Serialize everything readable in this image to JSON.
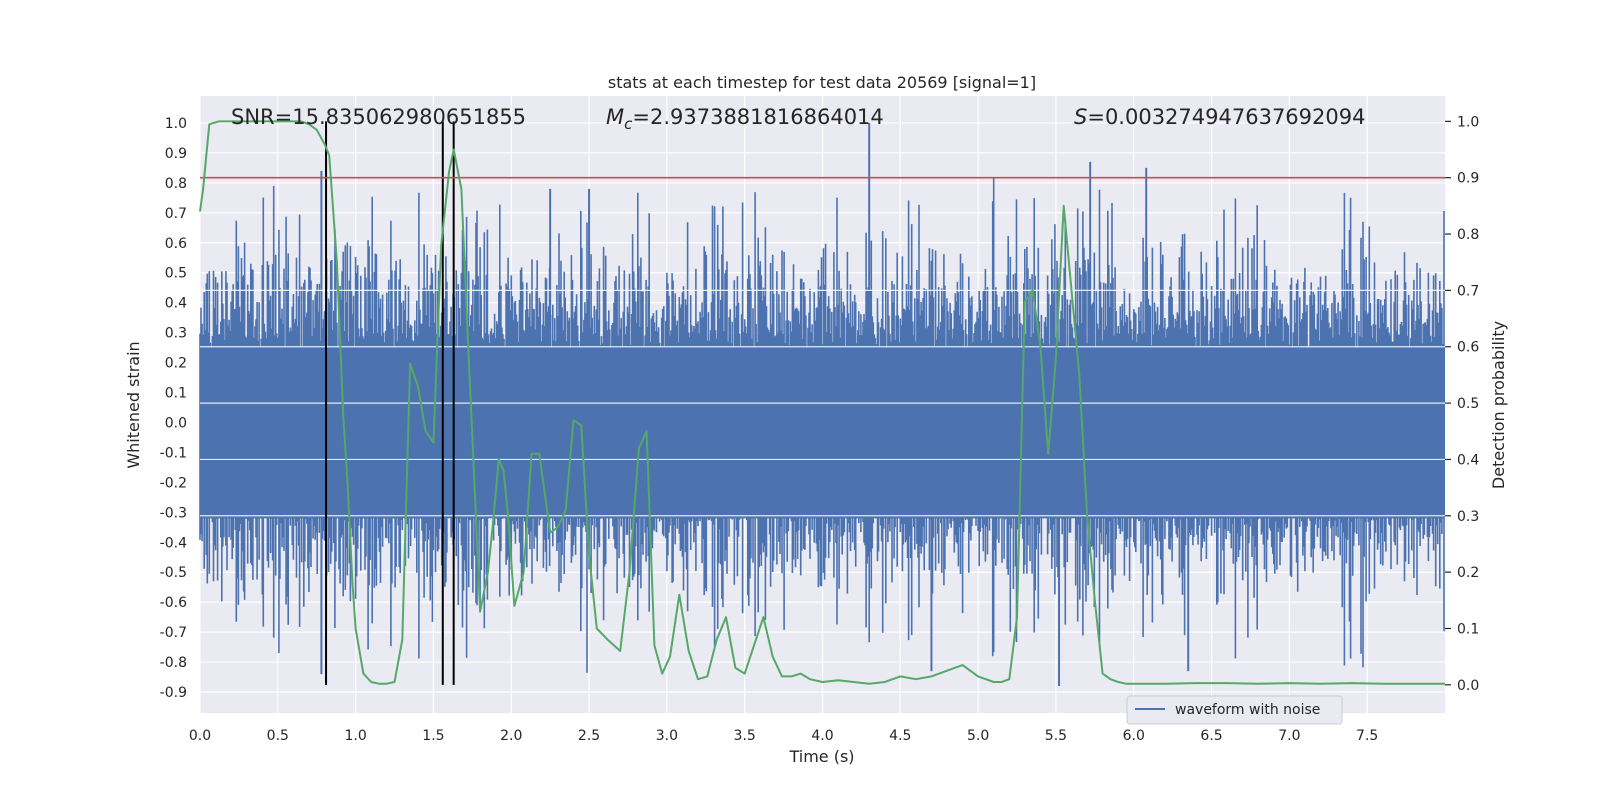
{
  "chart_data": {
    "type": "line",
    "title": "stats at each timestep for test data 20569 [signal=1]",
    "xlabel": "Time (s)",
    "ylabel_left": "Whitened strain",
    "ylabel_right": "Detection probability",
    "xlim": [
      0.0,
      8.0
    ],
    "ylim_left": [
      -0.97,
      1.09
    ],
    "ylim_right": [
      -0.05,
      1.045
    ],
    "x_ticks": [
      "0.0",
      "0.5",
      "1.0",
      "1.5",
      "2.0",
      "2.5",
      "3.0",
      "3.5",
      "4.0",
      "4.5",
      "5.0",
      "5.5",
      "6.0",
      "6.5",
      "7.0",
      "7.5"
    ],
    "y_left_ticks": [
      "1.0",
      "0.9",
      "0.8",
      "0.7",
      "0.6",
      "0.5",
      "0.4",
      "0.3",
      "0.2",
      "0.1",
      "0.0",
      "-0.1",
      "-0.2",
      "-0.3",
      "-0.4",
      "-0.5",
      "-0.6",
      "-0.7",
      "-0.8",
      "-0.9"
    ],
    "y_right_ticks": [
      "1.0",
      "0.9",
      "0.8",
      "0.7",
      "0.6",
      "0.5",
      "0.4",
      "0.3",
      "0.2",
      "0.1",
      "0.0"
    ],
    "grid": true,
    "legend": {
      "placement": "lower-right",
      "entries": [
        "waveform with noise"
      ]
    },
    "annotations": {
      "snr": "SNR=15.835062980651855",
      "mc_symbol": "M",
      "mc_sub": "c",
      "mc_value": "=2.9373881816864014",
      "s_symbol": "S",
      "s_value": "=0.003274947637692094"
    },
    "threshold": {
      "value": 0.9,
      "axis": "right",
      "color": "#c44e52"
    },
    "vlines_x": [
      0.81,
      1.56,
      1.63
    ],
    "colors": {
      "strain": "#4c72b0",
      "probability": "#55a868",
      "threshold": "#c44e52",
      "vline": "#000000",
      "background": "#eaeaf2"
    },
    "strain": {
      "name": "waveform with noise",
      "amplitude_envelope": {
        "core": 0.33,
        "typical_peak": 0.55,
        "max": 1.0,
        "min": -0.88
      },
      "notable_peaks": [
        {
          "x": 4.3,
          "y": 1.0
        },
        {
          "x": 5.72,
          "y": 0.87
        },
        {
          "x": 6.08,
          "y": 0.85
        },
        {
          "x": 0.78,
          "y": 0.84
        },
        {
          "x": 2.25,
          "y": 0.78
        },
        {
          "x": 2.5,
          "y": 0.78
        },
        {
          "x": 5.52,
          "y": -0.88
        },
        {
          "x": 0.78,
          "y": -0.84
        },
        {
          "x": 4.7,
          "y": -0.83
        },
        {
          "x": 6.35,
          "y": -0.83
        }
      ]
    },
    "probability": {
      "x": [
        0.0,
        0.02,
        0.06,
        0.12,
        0.2,
        0.3,
        0.4,
        0.5,
        0.6,
        0.65,
        0.7,
        0.75,
        0.8,
        0.83,
        0.88,
        0.92,
        0.95,
        0.98,
        1.0,
        1.05,
        1.1,
        1.15,
        1.2,
        1.25,
        1.3,
        1.35,
        1.4,
        1.45,
        1.5,
        1.55,
        1.6,
        1.63,
        1.68,
        1.72,
        1.76,
        1.8,
        1.85,
        1.88,
        1.92,
        1.95,
        1.98,
        2.02,
        2.08,
        2.13,
        2.18,
        2.25,
        2.3,
        2.35,
        2.4,
        2.45,
        2.5,
        2.55,
        2.62,
        2.7,
        2.76,
        2.82,
        2.87,
        2.92,
        2.97,
        3.02,
        3.08,
        3.14,
        3.2,
        3.26,
        3.32,
        3.38,
        3.44,
        3.5,
        3.56,
        3.62,
        3.68,
        3.74,
        3.8,
        3.86,
        3.92,
        4.0,
        4.1,
        4.2,
        4.3,
        4.4,
        4.5,
        4.6,
        4.7,
        4.8,
        4.9,
        5.0,
        5.05,
        5.1,
        5.15,
        5.2,
        5.25,
        5.3,
        5.35,
        5.4,
        5.45,
        5.5,
        5.55,
        5.6,
        5.65,
        5.7,
        5.75,
        5.8,
        5.85,
        5.9,
        5.95,
        6.0,
        6.2,
        6.4,
        6.6,
        6.8,
        7.0,
        7.2,
        7.4,
        7.6,
        7.8,
        8.0
      ],
      "y": [
        0.84,
        0.88,
        0.995,
        1.0,
        1.0,
        1.0,
        1.0,
        1.0,
        1.0,
        1.0,
        0.995,
        0.985,
        0.96,
        0.94,
        0.75,
        0.48,
        0.35,
        0.18,
        0.1,
        0.02,
        0.005,
        0.002,
        0.002,
        0.005,
        0.08,
        0.57,
        0.53,
        0.45,
        0.43,
        0.78,
        0.91,
        0.95,
        0.88,
        0.62,
        0.38,
        0.13,
        0.2,
        0.28,
        0.4,
        0.38,
        0.3,
        0.14,
        0.2,
        0.41,
        0.41,
        0.27,
        0.28,
        0.31,
        0.47,
        0.46,
        0.23,
        0.1,
        0.08,
        0.06,
        0.2,
        0.42,
        0.45,
        0.07,
        0.02,
        0.05,
        0.16,
        0.06,
        0.01,
        0.015,
        0.08,
        0.12,
        0.03,
        0.02,
        0.07,
        0.12,
        0.05,
        0.015,
        0.015,
        0.02,
        0.01,
        0.005,
        0.008,
        0.005,
        0.002,
        0.005,
        0.015,
        0.01,
        0.015,
        0.025,
        0.035,
        0.015,
        0.01,
        0.005,
        0.005,
        0.01,
        0.12,
        0.68,
        0.7,
        0.6,
        0.41,
        0.58,
        0.85,
        0.7,
        0.55,
        0.3,
        0.15,
        0.02,
        0.01,
        0.005,
        0.002,
        0.002,
        0.002,
        0.003,
        0.003,
        0.002,
        0.003,
        0.002,
        0.003,
        0.002,
        0.002,
        0.002
      ]
    }
  }
}
